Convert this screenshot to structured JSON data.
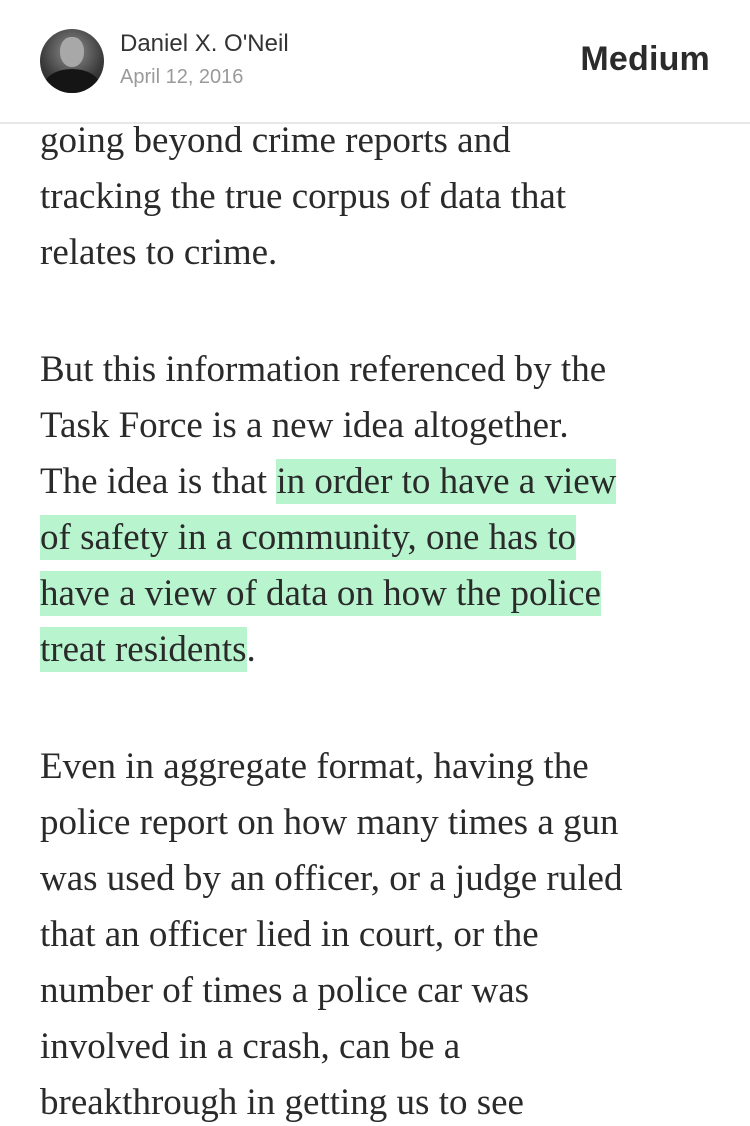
{
  "header": {
    "author_name": "Daniel X. O'Neil",
    "date": "April 12, 2016",
    "brand": "Medium"
  },
  "article": {
    "p1": [
      "going beyond crime reports and",
      "tracking the true corpus of data that",
      "relates to crime."
    ],
    "p2": {
      "line1": "But this information referenced by the",
      "line2": "Task Force is a new idea altogether.",
      "line3_plain": "The idea is that ",
      "line3_highlight": "in order to have a view",
      "line4_highlight": "of safety in a community, one has to",
      "line5_highlight": "have a view of data on how the police",
      "line6_highlight": "treat residents",
      "line6_plain": "."
    },
    "p3": [
      "Even in aggregate format, having the",
      "police report on how many times a gun",
      "was used by an officer, or a judge ruled",
      "that an officer lied in court, or the",
      "number of times a police car was",
      "involved in a crash, can be a",
      "breakthrough in getting us to see"
    ]
  },
  "colors": {
    "highlight": "#b8f5cf",
    "text": "#2a2a2a",
    "muted": "#9a9a9a"
  }
}
